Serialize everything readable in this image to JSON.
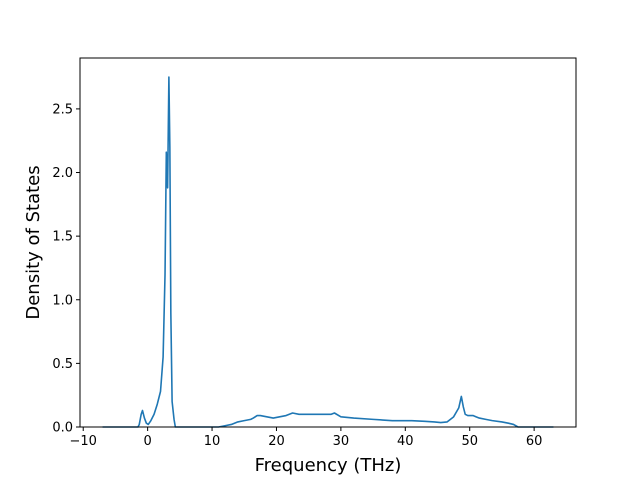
{
  "chart_data": {
    "type": "line",
    "title": "",
    "xlabel": "Frequency (THz)",
    "ylabel": "Density of States",
    "xlim": [
      -10.5,
      66.5
    ],
    "ylim": [
      0,
      2.9
    ],
    "xticks": [
      -10,
      0,
      10,
      20,
      30,
      40,
      50,
      60
    ],
    "xtick_labels": [
      "−10",
      "0",
      "10",
      "20",
      "30",
      "40",
      "50",
      "60"
    ],
    "yticks": [
      0,
      0.5,
      1.0,
      1.5,
      2.0,
      2.5
    ],
    "ytick_labels": [
      "0.0",
      "0.5",
      "1.0",
      "1.5",
      "2.0",
      "2.5"
    ],
    "grid": false,
    "legend": "none",
    "colors": {
      "line": "#1f77b4"
    },
    "series": [
      {
        "x": [
          -7.0,
          -1.5,
          -1.3,
          -1.0,
          -0.8,
          -0.5,
          -0.2,
          0.1,
          0.5,
          1.0,
          1.5,
          2.0,
          2.4,
          2.7,
          2.9,
          3.1,
          3.3,
          3.45,
          3.6,
          3.8,
          4.1,
          4.3,
          5.0,
          11.0,
          12.0,
          13.0,
          14.0,
          15.0,
          16.0,
          16.4,
          17.0,
          17.5,
          18.5,
          19.5,
          20.5,
          21.5,
          22.5,
          23.5,
          25.0,
          27.0,
          28.5,
          29.0,
          30.0,
          32.0,
          35.0,
          38.0,
          41.0,
          43.0,
          44.5,
          45.5,
          46.5,
          47.5,
          48.3,
          48.7,
          49.0,
          49.3,
          49.7,
          50.5,
          51.0,
          51.5,
          52.5,
          53.5,
          55.0,
          56.0,
          56.8,
          57.5,
          63.0
        ],
        "y": [
          0,
          0,
          0.02,
          0.1,
          0.13,
          0.07,
          0.03,
          0.02,
          0.05,
          0.1,
          0.18,
          0.28,
          0.55,
          1.2,
          2.16,
          1.88,
          2.75,
          2.2,
          0.9,
          0.2,
          0.06,
          0.0,
          0,
          0,
          0.01,
          0.02,
          0.04,
          0.05,
          0.06,
          0.07,
          0.09,
          0.09,
          0.08,
          0.07,
          0.08,
          0.09,
          0.11,
          0.1,
          0.1,
          0.1,
          0.1,
          0.11,
          0.08,
          0.07,
          0.06,
          0.05,
          0.05,
          0.045,
          0.04,
          0.035,
          0.04,
          0.08,
          0.15,
          0.24,
          0.16,
          0.1,
          0.09,
          0.09,
          0.08,
          0.07,
          0.06,
          0.05,
          0.04,
          0.03,
          0.02,
          0.0,
          0
        ]
      }
    ]
  }
}
